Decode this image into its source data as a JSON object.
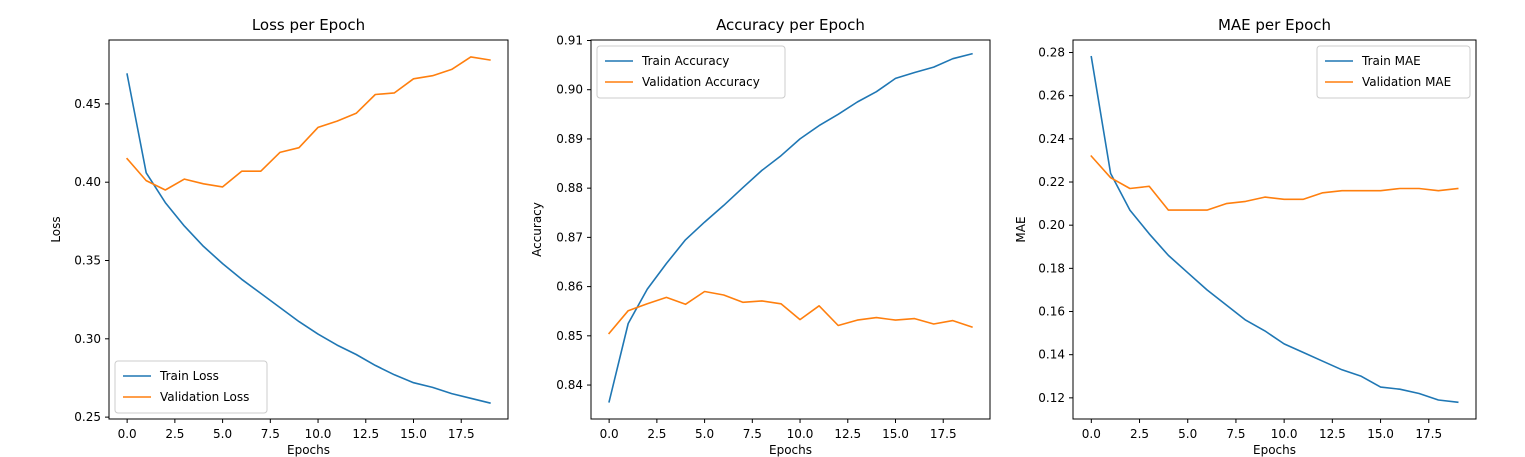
{
  "chart_data": [
    {
      "type": "line",
      "title": "Loss per Epoch",
      "xlabel": "Epochs",
      "ylabel": "Loss",
      "xlim": [
        -0.95,
        19.95
      ],
      "ylim": [
        0.2488,
        0.4908
      ],
      "xticks": [
        0,
        2.5,
        5,
        7.5,
        10,
        12.5,
        15,
        17.5
      ],
      "xtick_labels": [
        "0.0",
        "2.5",
        "5.0",
        "7.5",
        "10.0",
        "12.5",
        "15.0",
        "17.5"
      ],
      "yticks": [
        0.25,
        0.3,
        0.35,
        0.4,
        0.45
      ],
      "ytick_labels": [
        "0.25",
        "0.30",
        "0.35",
        "0.40",
        "0.45"
      ],
      "legend_position": "lower-left",
      "grid": false,
      "x": [
        0,
        1,
        2,
        3,
        4,
        5,
        6,
        7,
        8,
        9,
        10,
        11,
        12,
        13,
        14,
        15,
        16,
        17,
        18,
        19
      ],
      "series": [
        {
          "name": "Train Loss",
          "color": "#1f77b4",
          "values": [
            0.469,
            0.406,
            0.387,
            0.372,
            0.359,
            0.348,
            0.338,
            0.329,
            0.32,
            0.311,
            0.303,
            0.296,
            0.29,
            0.283,
            0.277,
            0.272,
            0.269,
            0.265,
            0.262,
            0.259
          ]
        },
        {
          "name": "Validation Loss",
          "color": "#ff7f0e",
          "values": [
            0.415,
            0.401,
            0.395,
            0.402,
            0.399,
            0.397,
            0.407,
            0.407,
            0.419,
            0.422,
            0.435,
            0.439,
            0.444,
            0.456,
            0.457,
            0.466,
            0.468,
            0.472,
            0.48,
            0.478
          ]
        }
      ]
    },
    {
      "type": "line",
      "title": "Accuracy per Epoch",
      "xlabel": "Epochs",
      "ylabel": "Accuracy",
      "xlim": [
        -0.95,
        19.95
      ],
      "ylim": [
        0.8331,
        0.9101
      ],
      "xticks": [
        0,
        2.5,
        5,
        7.5,
        10,
        12.5,
        15,
        17.5
      ],
      "xtick_labels": [
        "0.0",
        "2.5",
        "5.0",
        "7.5",
        "10.0",
        "12.5",
        "15.0",
        "17.5"
      ],
      "yticks": [
        0.84,
        0.85,
        0.86,
        0.87,
        0.88,
        0.89,
        0.9,
        0.91
      ],
      "ytick_labels": [
        "0.84",
        "0.85",
        "0.86",
        "0.87",
        "0.88",
        "0.89",
        "0.90",
        "0.91"
      ],
      "legend_position": "upper-left",
      "grid": false,
      "x": [
        0,
        1,
        2,
        3,
        4,
        5,
        6,
        7,
        8,
        9,
        10,
        11,
        12,
        13,
        14,
        15,
        16,
        17,
        18,
        19
      ],
      "series": [
        {
          "name": "Train Accuracy",
          "color": "#1f77b4",
          "values": [
            0.8366,
            0.8525,
            0.8595,
            0.8647,
            0.8695,
            0.8731,
            0.8765,
            0.8801,
            0.8836,
            0.8866,
            0.89,
            0.8927,
            0.895,
            0.8975,
            0.8996,
            0.9023,
            0.9035,
            0.9046,
            0.9063,
            0.9073
          ]
        },
        {
          "name": "Validation Accuracy",
          "color": "#ff7f0e",
          "values": [
            0.8505,
            0.8551,
            0.8565,
            0.8578,
            0.8564,
            0.859,
            0.8583,
            0.8568,
            0.8571,
            0.8565,
            0.8533,
            0.8561,
            0.8521,
            0.8532,
            0.8537,
            0.8532,
            0.8535,
            0.8524,
            0.8531,
            0.8518
          ]
        }
      ]
    },
    {
      "type": "line",
      "title": "MAE per Epoch",
      "xlabel": "Epochs",
      "ylabel": "MAE",
      "xlim": [
        -0.95,
        19.95
      ],
      "ylim": [
        0.1102,
        0.2858
      ],
      "xticks": [
        0,
        2.5,
        5,
        7.5,
        10,
        12.5,
        15,
        17.5
      ],
      "xtick_labels": [
        "0.0",
        "2.5",
        "5.0",
        "7.5",
        "10.0",
        "12.5",
        "15.0",
        "17.5"
      ],
      "yticks": [
        0.12,
        0.14,
        0.16,
        0.18,
        0.2,
        0.22,
        0.24,
        0.26,
        0.28
      ],
      "ytick_labels": [
        "0.12",
        "0.14",
        "0.16",
        "0.18",
        "0.20",
        "0.22",
        "0.24",
        "0.26",
        "0.28"
      ],
      "legend_position": "upper-right",
      "grid": false,
      "x": [
        0,
        1,
        2,
        3,
        4,
        5,
        6,
        7,
        8,
        9,
        10,
        11,
        12,
        13,
        14,
        15,
        16,
        17,
        18,
        19
      ],
      "series": [
        {
          "name": "Train MAE",
          "color": "#1f77b4",
          "values": [
            0.278,
            0.224,
            0.207,
            0.196,
            0.186,
            0.178,
            0.17,
            0.163,
            0.156,
            0.151,
            0.145,
            0.141,
            0.137,
            0.133,
            0.13,
            0.125,
            0.124,
            0.122,
            0.119,
            0.118
          ]
        },
        {
          "name": "Validation MAE",
          "color": "#ff7f0e",
          "values": [
            0.232,
            0.222,
            0.217,
            0.218,
            0.207,
            0.207,
            0.207,
            0.21,
            0.211,
            0.213,
            0.212,
            0.212,
            0.215,
            0.216,
            0.216,
            0.216,
            0.217,
            0.217,
            0.216,
            0.217
          ]
        }
      ]
    }
  ]
}
